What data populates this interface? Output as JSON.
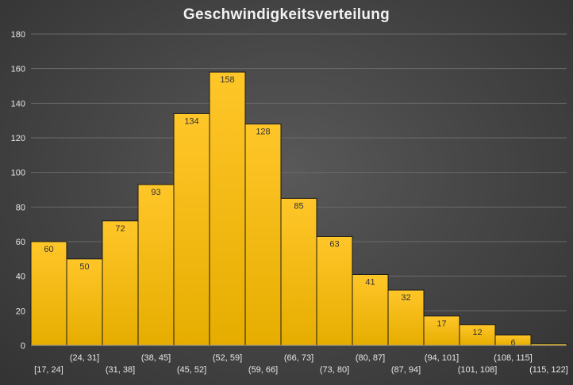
{
  "chart_data": {
    "type": "bar",
    "title": "Geschwindigkeitsverteilung",
    "xlabel": "",
    "ylabel": "",
    "ylim": [
      0,
      180
    ],
    "yticks": [
      0,
      20,
      40,
      60,
      80,
      100,
      120,
      140,
      160,
      180
    ],
    "grid": true,
    "legend": "none",
    "categories": [
      "[17, 24]",
      "(24, 31]",
      "(31, 38]",
      "(38, 45]",
      "(45, 52]",
      "(52, 59]",
      "(59, 66]",
      "(66, 73]",
      "(73, 80]",
      "(80, 87]",
      "(87, 94]",
      "(94, 101]",
      "(101, 108]",
      "(108, 115]",
      "(115, 122]"
    ],
    "values": [
      60,
      50,
      72,
      93,
      134,
      158,
      128,
      85,
      63,
      41,
      32,
      17,
      12,
      6,
      1
    ],
    "colors": {
      "bar_light": "#ffc629",
      "bar_dark": "#e6ad00",
      "background": "#474747",
      "text": "#e6e6e6"
    }
  }
}
